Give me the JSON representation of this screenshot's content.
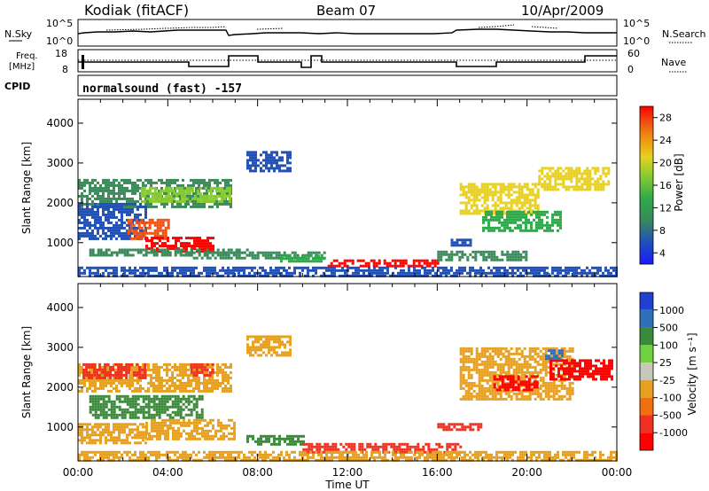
{
  "header": {
    "station": "Kodiak (fitACF)",
    "beam": "Beam 07",
    "date": "10/Apr/2009"
  },
  "top_panels": {
    "nsky_label": "N.Sky",
    "nsky_axis_top": "10^5",
    "nsky_axis_bottom": "10^0",
    "nsearch_label": "N.Search",
    "freq_label_line1": "Freq.",
    "freq_label_line2": "[MHz]",
    "freq_axis_top": "18",
    "freq_axis_bottom": "8",
    "nave_label": "Nave",
    "nave_axis_top": "60",
    "nave_axis_bottom": "0",
    "cpid_label": "CPID",
    "cpid_value": "normalsound (fast) -157"
  },
  "time_axis": {
    "title": "Time UT",
    "ticks": [
      "00:00",
      "04:00",
      "08:00",
      "12:00",
      "16:00",
      "20:00",
      "00:00"
    ]
  },
  "colors": {
    "power_scale": [
      "#1a1aff",
      "#2050b8",
      "#3a8a5a",
      "#2faa4a",
      "#88cc30",
      "#e8d020",
      "#f09010",
      "#f05010",
      "#ff0000"
    ],
    "velocity_scale": [
      "#2040d0",
      "#3070b8",
      "#3a8a3a",
      "#70d040",
      "#c8c8b8",
      "#e8a020",
      "#f07010",
      "#f03020",
      "#ff0000"
    ]
  },
  "chart_data": [
    {
      "type": "heatmap",
      "name": "power",
      "ylabel": "Slant Range [km]",
      "yticks": [
        1000,
        2000,
        3000,
        4000
      ],
      "ylim": [
        150,
        4600
      ],
      "xlim": [
        0,
        24
      ],
      "colorbar_label": "Power [dB]",
      "colorbar_ticks": [
        "4",
        "8",
        "12",
        "16",
        "20",
        "24",
        "28"
      ],
      "regions": [
        {
          "t0": 0.0,
          "t1": 6.8,
          "r0": 1900,
          "r1": 2600,
          "value": 10
        },
        {
          "t0": 2.8,
          "t1": 6.8,
          "r0": 2000,
          "r1": 2400,
          "value": 16
        },
        {
          "t0": 0.0,
          "t1": 3.0,
          "r0": 1100,
          "r1": 2000,
          "value": 6
        },
        {
          "t0": 2.2,
          "t1": 4.0,
          "r0": 1100,
          "r1": 1600,
          "value": 26
        },
        {
          "t0": 3.0,
          "t1": 6.0,
          "r0": 750,
          "r1": 1150,
          "value": 30
        },
        {
          "t0": 0.5,
          "t1": 7.5,
          "r0": 650,
          "r1": 850,
          "value": 8
        },
        {
          "t0": 5.0,
          "t1": 11.0,
          "r0": 600,
          "r1": 780,
          "value": 9
        },
        {
          "t0": 11.0,
          "t1": 16.0,
          "r0": 400,
          "r1": 580,
          "value": 30
        },
        {
          "t0": 9.0,
          "t1": 11.0,
          "r0": 500,
          "r1": 700,
          "value": 12
        },
        {
          "t0": 16.0,
          "t1": 20.0,
          "r0": 550,
          "r1": 800,
          "value": 9
        },
        {
          "t0": 17.0,
          "t1": 20.5,
          "r0": 1700,
          "r1": 2500,
          "value": 19
        },
        {
          "t0": 18.0,
          "t1": 21.5,
          "r0": 1300,
          "r1": 1800,
          "value": 14
        },
        {
          "t0": 16.6,
          "t1": 17.5,
          "r0": 900,
          "r1": 1100,
          "value": 6
        },
        {
          "t0": 20.5,
          "t1": 23.6,
          "r0": 2300,
          "r1": 2900,
          "value": 21
        },
        {
          "t0": 7.5,
          "t1": 9.5,
          "r0": 2800,
          "r1": 3300,
          "value": 6
        },
        {
          "t0": 0.0,
          "t1": 24.0,
          "r0": 150,
          "r1": 400,
          "value": 7
        }
      ]
    },
    {
      "type": "heatmap",
      "name": "velocity",
      "ylabel": "Slant Range [km]",
      "yticks": [
        1000,
        2000,
        3000,
        4000
      ],
      "ylim": [
        150,
        4600
      ],
      "xlim": [
        0,
        24
      ],
      "colorbar_label": "Velocity [m s⁻¹]",
      "colorbar_ticks": [
        "1000",
        "500",
        "100",
        "25",
        "-25",
        "-100",
        "-500",
        "-1000"
      ],
      "regions": [
        {
          "t0": 0.0,
          "t1": 6.8,
          "r0": 1900,
          "r1": 2600,
          "value": -5
        },
        {
          "t0": 0.2,
          "t1": 3.0,
          "r0": 2200,
          "r1": 2600,
          "value": -150
        },
        {
          "t0": 5.0,
          "t1": 6.0,
          "r0": 2300,
          "r1": 2600,
          "value": -150
        },
        {
          "t0": 0.5,
          "t1": 5.5,
          "r0": 1200,
          "r1": 1800,
          "value": 150
        },
        {
          "t0": 3.0,
          "t1": 7.0,
          "r0": 700,
          "r1": 1200,
          "value": 5
        },
        {
          "t0": 0.0,
          "t1": 3.0,
          "r0": 600,
          "r1": 1100,
          "value": 10
        },
        {
          "t0": 7.5,
          "t1": 10.0,
          "r0": 550,
          "r1": 800,
          "value": 300
        },
        {
          "t0": 10.0,
          "t1": 17.0,
          "r0": 350,
          "r1": 600,
          "value": -150
        },
        {
          "t0": 16.0,
          "t1": 18.0,
          "r0": 900,
          "r1": 1100,
          "value": -150
        },
        {
          "t0": 17.0,
          "t1": 22.0,
          "r0": 1700,
          "r1": 3000,
          "value": -5
        },
        {
          "t0": 18.5,
          "t1": 20.5,
          "r0": 1900,
          "r1": 2300,
          "value": -600
        },
        {
          "t0": 21.0,
          "t1": 23.8,
          "r0": 2200,
          "r1": 2700,
          "value": -700
        },
        {
          "t0": 20.8,
          "t1": 21.6,
          "r0": 2700,
          "r1": 2950,
          "value": 800
        },
        {
          "t0": 0.0,
          "t1": 24.0,
          "r0": 150,
          "r1": 400,
          "value": 5
        },
        {
          "t0": 7.5,
          "t1": 9.5,
          "r0": 2800,
          "r1": 3300,
          "value": 10
        }
      ]
    }
  ]
}
